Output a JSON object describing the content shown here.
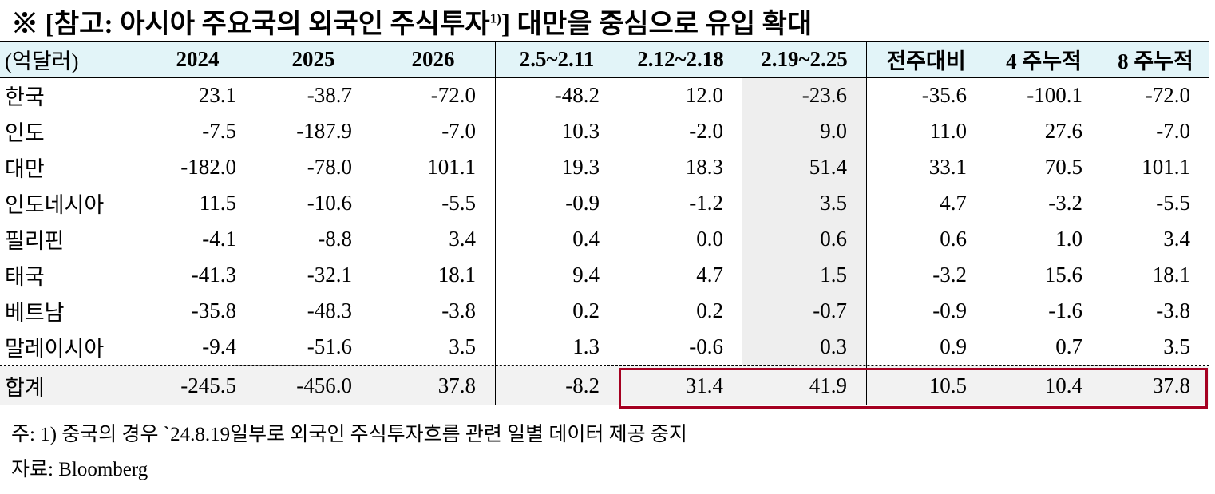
{
  "header": {
    "title_before": "※ [참고: 아시아 주요국의 외국인 주식투자",
    "title_note": "1)",
    "title_after": "] 대만을 중심으로 유입 확대"
  },
  "table": {
    "columns": [
      "(억달러)",
      "2024",
      "2025",
      "2026",
      "2.5~2.11",
      "2.12~2.18",
      "2.19~2.25",
      "전주대비",
      "4 주누적",
      "8 주누적"
    ],
    "rows": [
      [
        "한국",
        "23.1",
        "-38.7",
        "-72.0",
        "-48.2",
        "12.0",
        "-23.6",
        "-35.6",
        "-100.1",
        "-72.0"
      ],
      [
        "인도",
        "-7.5",
        "-187.9",
        "-7.0",
        "10.3",
        "-2.0",
        "9.0",
        "11.0",
        "27.6",
        "-7.0"
      ],
      [
        "대만",
        "-182.0",
        "-78.0",
        "101.1",
        "19.3",
        "18.3",
        "51.4",
        "33.1",
        "70.5",
        "101.1"
      ],
      [
        "인도네시아",
        "11.5",
        "-10.6",
        "-5.5",
        "-0.9",
        "-1.2",
        "3.5",
        "4.7",
        "-3.2",
        "-5.5"
      ],
      [
        "필리핀",
        "-4.1",
        "-8.8",
        "3.4",
        "0.4",
        "0.0",
        "0.6",
        "0.6",
        "1.0",
        "3.4"
      ],
      [
        "태국",
        "-41.3",
        "-32.1",
        "18.1",
        "9.4",
        "4.7",
        "1.5",
        "-3.2",
        "15.6",
        "18.1"
      ],
      [
        "베트남",
        "-35.8",
        "-48.3",
        "-3.8",
        "0.2",
        "0.2",
        "-0.7",
        "-0.9",
        "-1.6",
        "-3.8"
      ],
      [
        "말레이시아",
        "-9.4",
        "-51.6",
        "3.5",
        "1.3",
        "-0.6",
        "0.3",
        "0.9",
        "0.7",
        "3.5"
      ]
    ],
    "total": [
      "합계",
      "-245.5",
      "-456.0",
      "37.8",
      "-8.2",
      "31.4",
      "41.9",
      "10.5",
      "10.4",
      "37.8"
    ]
  },
  "notes": [
    "주: 1) 중국의 경우 `24.8.19일부로 외국인 주식투자흐름 관련 일별 데이터 제공 중지",
    "자료: Bloomberg"
  ]
}
